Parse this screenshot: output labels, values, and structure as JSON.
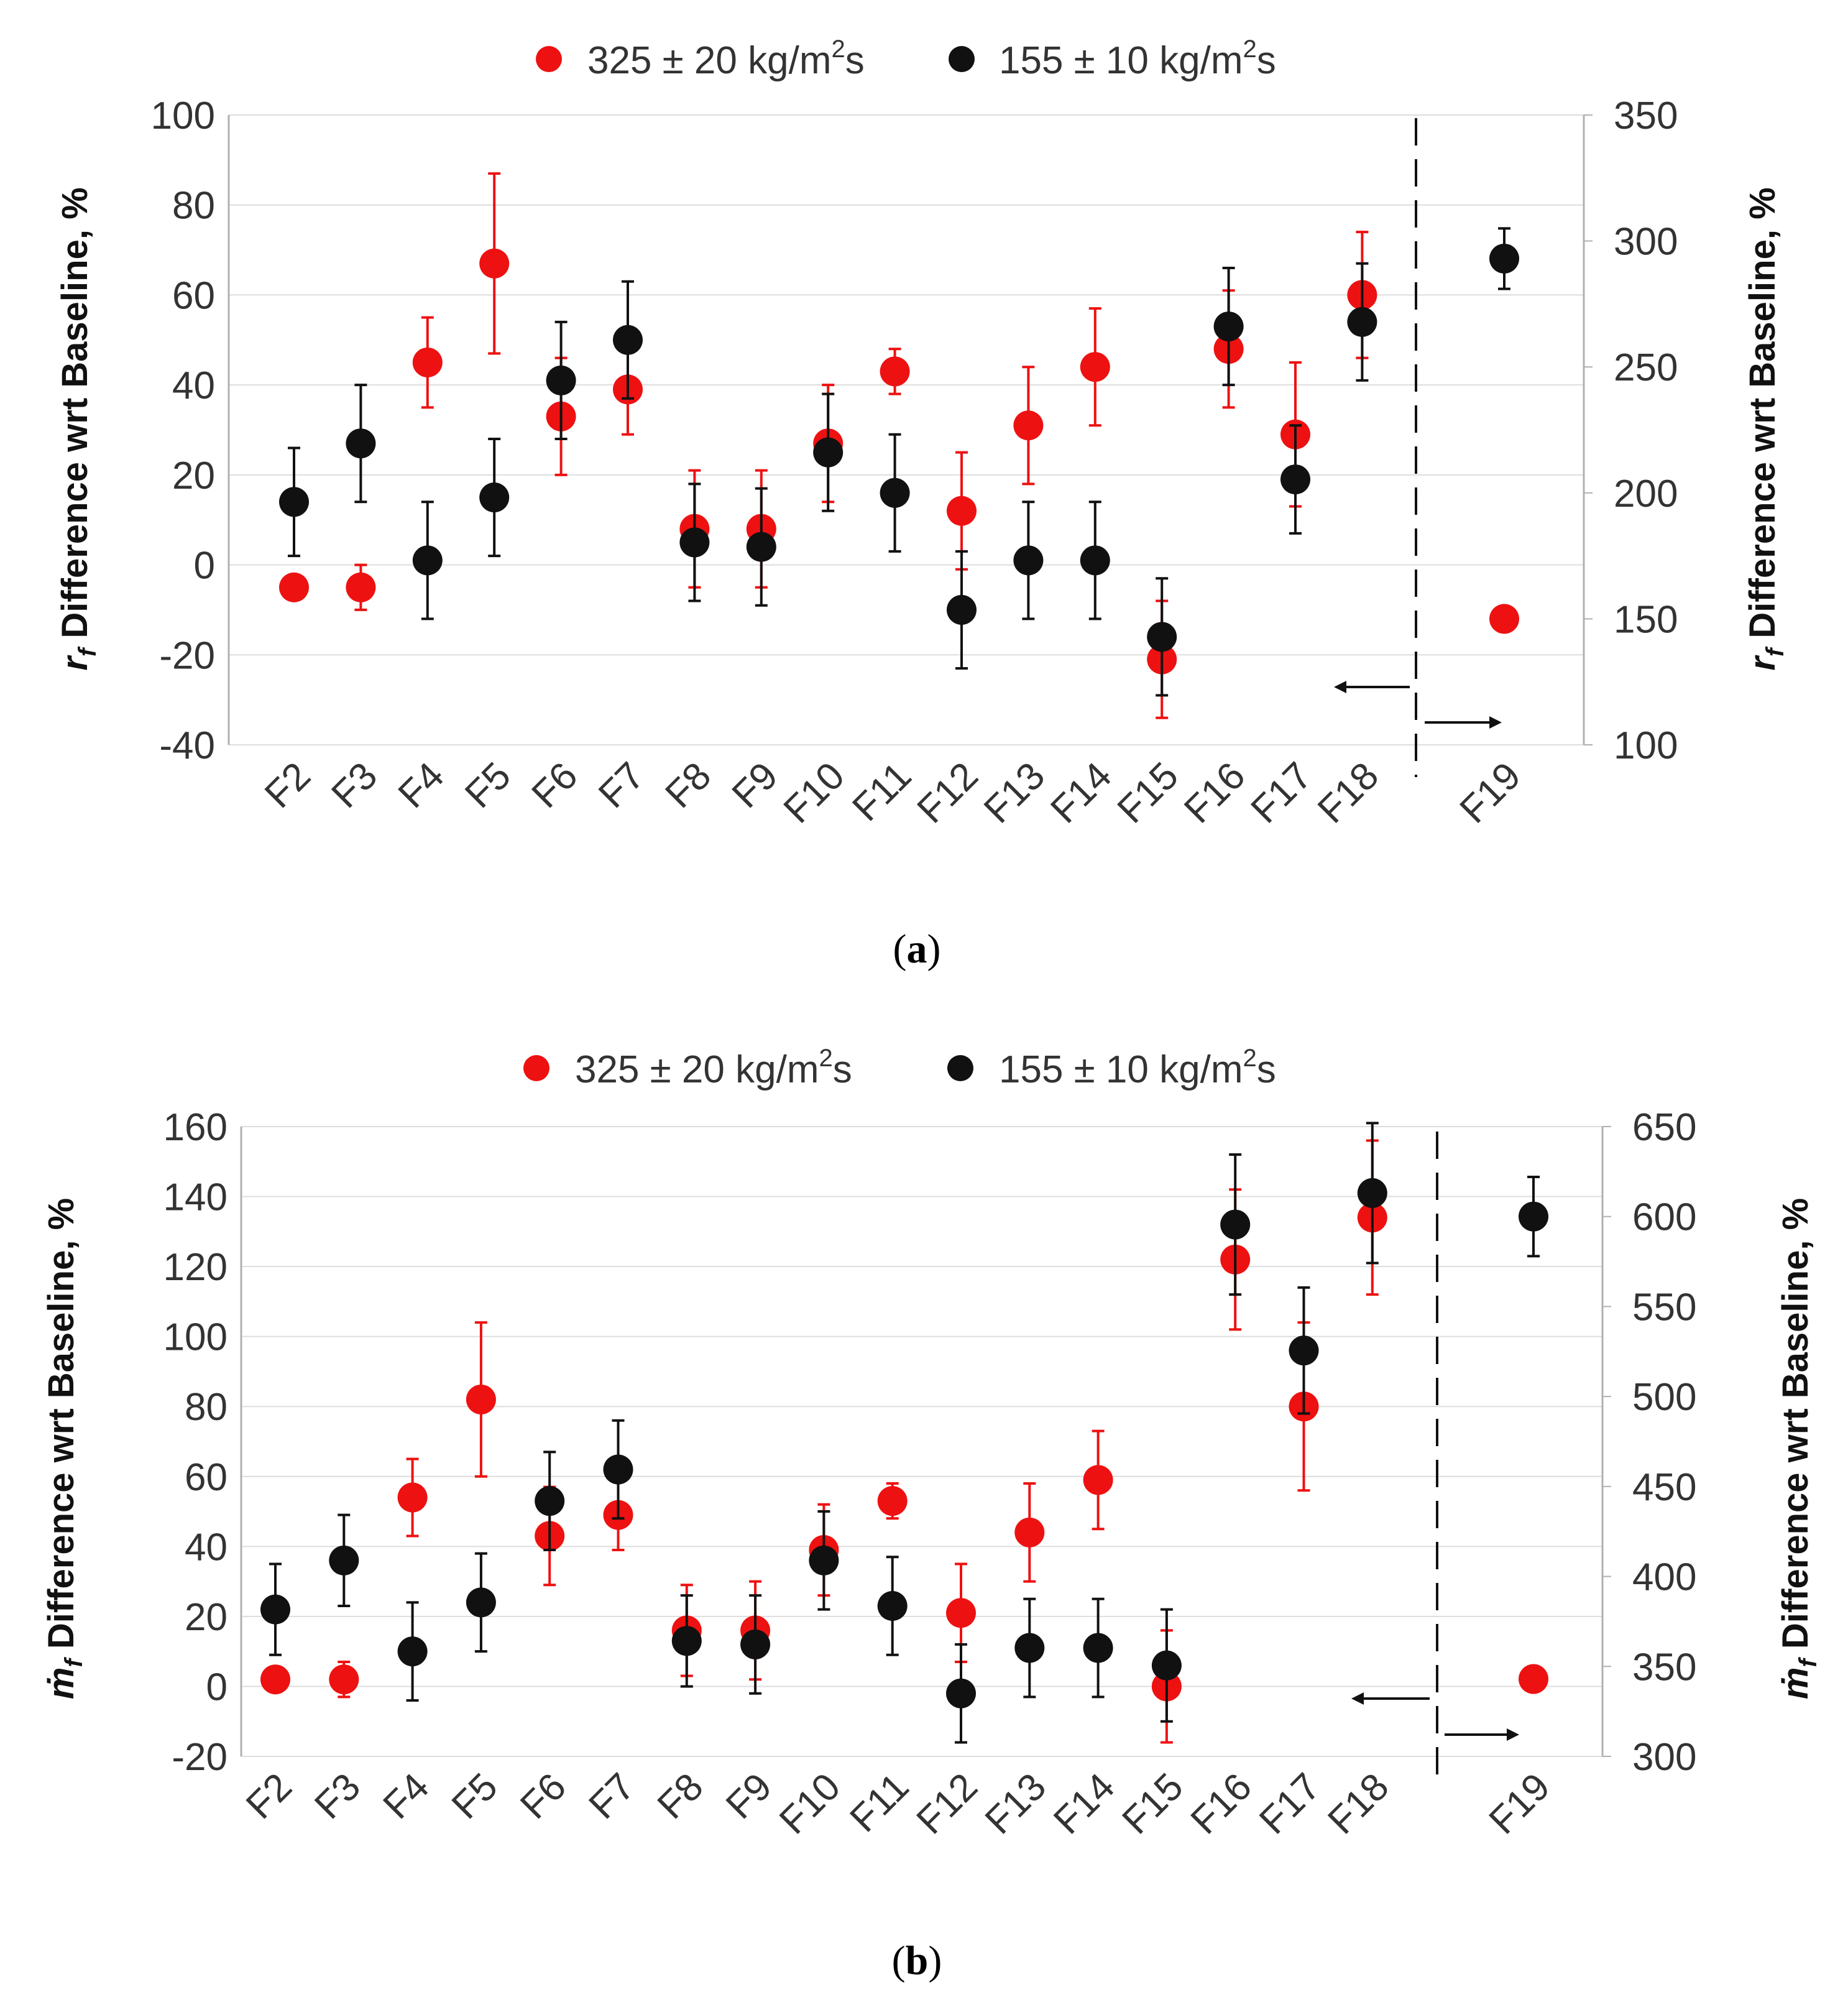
{
  "colors": {
    "high_flux": "#ee1111",
    "low_flux": "#111111",
    "grid": "#dddddd",
    "axis": "#b0b0b0"
  },
  "chart_data": [
    {
      "type": "scatter",
      "panel": "a",
      "caption": {
        "open": "(",
        "letter": "a",
        "close": ")"
      },
      "categories": [
        "F2",
        "F3",
        "F4",
        "F5",
        "F6",
        "F7",
        "F8",
        "F9",
        "F10",
        "F11",
        "F12",
        "F13",
        "F14",
        "F15",
        "F16",
        "F17",
        "F18",
        "F19"
      ],
      "legend": {
        "placement": "top-center",
        "red": {
          "prefix": "325 ± 20 kg/m",
          "sup": "2",
          "suffix": "s"
        },
        "black": {
          "prefix": "155 ± 10 kg/m",
          "sup": "2",
          "suffix": "s"
        }
      },
      "ylabel_left": {
        "symbol": "r",
        "sub": "f",
        "text": " Difference wrt Baseline, %"
      },
      "ylabel_right": {
        "symbol": "r",
        "sub": "f",
        "text": " Difference wrt Baseline, %"
      },
      "ylim_left": [
        -40,
        100
      ],
      "yticks_left": [
        "-40",
        "-20",
        "0",
        "20",
        "40",
        "60",
        "80",
        "100"
      ],
      "ylim_right": [
        100,
        350
      ],
      "yticks_right": [
        "100",
        "150",
        "200",
        "250",
        "300",
        "350"
      ],
      "grid": true,
      "series": [
        {
          "name": "325 ± 20 kg/m2s",
          "color": "red",
          "values": [
            -5,
            -5,
            45,
            67,
            33,
            39,
            8,
            8,
            27,
            43,
            12,
            31,
            44,
            -21,
            48,
            29,
            60
          ],
          "errors": [
            0,
            5,
            10,
            20,
            13,
            10,
            13,
            13,
            13,
            5,
            13,
            13,
            13,
            13,
            13,
            16,
            14
          ],
          "right_axis": {
            "category": "F19",
            "value": 150,
            "error": 0
          }
        },
        {
          "name": "155 ± 10 kg/m2s",
          "color": "black",
          "values": [
            14,
            27,
            1,
            15,
            41,
            50,
            5,
            4,
            25,
            16,
            -10,
            1,
            1,
            -16,
            53,
            19,
            54
          ],
          "errors": [
            12,
            13,
            13,
            13,
            13,
            13,
            13,
            13,
            13,
            13,
            13,
            13,
            13,
            13,
            13,
            12,
            13
          ],
          "right_axis": {
            "category": "F19",
            "value": 293,
            "error": 12
          }
        }
      ]
    },
    {
      "type": "scatter",
      "panel": "b",
      "caption": {
        "open": "(",
        "letter": "b",
        "close": ")"
      },
      "categories": [
        "F2",
        "F3",
        "F4",
        "F5",
        "F6",
        "F7",
        "F8",
        "F9",
        "F10",
        "F11",
        "F12",
        "F13",
        "F14",
        "F15",
        "F16",
        "F17",
        "F18",
        "F19"
      ],
      "legend": {
        "placement": "top-center",
        "red": {
          "prefix": "325 ± 20 kg/m",
          "sup": "2",
          "suffix": "s"
        },
        "black": {
          "prefix": "155 ± 10 kg/m",
          "sup": "2",
          "suffix": "s"
        }
      },
      "ylabel_left": {
        "symbol": "ṁ",
        "sub": "f",
        "text": " Difference wrt Baseline, %"
      },
      "ylabel_right": {
        "symbol": "ṁ",
        "sub": "f",
        "text": " Difference wrt Baseline, %"
      },
      "ylim_left": [
        -20,
        160
      ],
      "yticks_left": [
        "-20",
        "0",
        "20",
        "40",
        "60",
        "80",
        "100",
        "120",
        "140",
        "160"
      ],
      "ylim_right": [
        300,
        650
      ],
      "yticks_right": [
        "300",
        "350",
        "400",
        "450",
        "500",
        "550",
        "600",
        "650"
      ],
      "grid": true,
      "series": [
        {
          "name": "325 ± 20 kg/m2s",
          "color": "red",
          "values": [
            2,
            2,
            54,
            82,
            43,
            49,
            16,
            16,
            39,
            53,
            21,
            44,
            59,
            0,
            122,
            80,
            134
          ],
          "errors": [
            0,
            5,
            11,
            22,
            14,
            10,
            13,
            14,
            13,
            5,
            14,
            14,
            14,
            16,
            20,
            24,
            22
          ],
          "right_axis": {
            "category": "F19",
            "value": 343,
            "error": 0
          }
        },
        {
          "name": "155 ± 10 kg/m2s",
          "color": "black",
          "values": [
            22,
            36,
            10,
            24,
            53,
            62,
            13,
            12,
            36,
            23,
            -2,
            11,
            11,
            6,
            132,
            96,
            141
          ],
          "errors": [
            13,
            13,
            14,
            14,
            14,
            14,
            13,
            14,
            14,
            14,
            14,
            14,
            14,
            16,
            20,
            18,
            20
          ],
          "right_axis": {
            "category": "F19",
            "value": 600,
            "error": 22
          }
        }
      ]
    }
  ]
}
